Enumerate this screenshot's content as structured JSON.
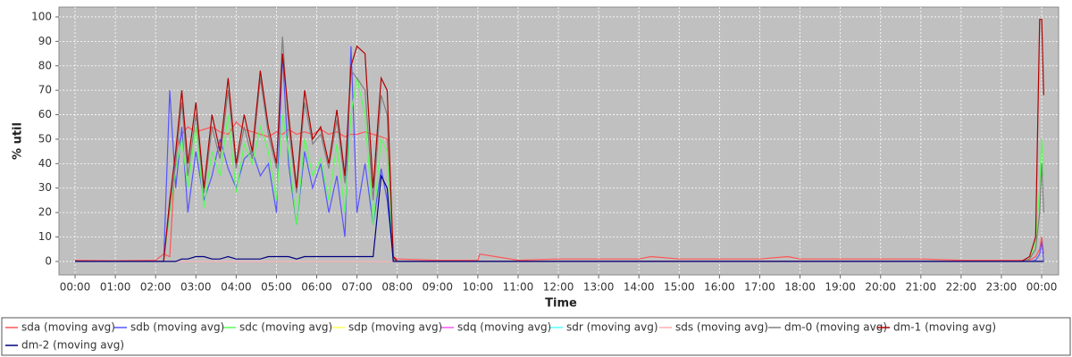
{
  "chart_data": {
    "type": "line",
    "xlabel": "Time",
    "ylabel": "% util",
    "x": [
      0,
      1,
      2,
      2.2,
      2.35,
      2.5,
      2.65,
      2.8,
      3.0,
      3.2,
      3.4,
      3.6,
      3.8,
      4.0,
      4.2,
      4.4,
      4.6,
      4.8,
      5.0,
      5.15,
      5.3,
      5.5,
      5.7,
      5.9,
      6.1,
      6.3,
      6.5,
      6.7,
      6.85,
      7.0,
      7.2,
      7.4,
      7.6,
      7.75,
      7.9,
      8.0,
      9,
      10,
      10.05,
      11,
      12,
      13,
      14,
      14.3,
      15,
      16,
      17,
      17.7,
      18,
      19,
      20,
      21,
      22,
      23,
      23.5,
      23.7,
      23.85,
      23.95,
      24.0,
      24.05
    ],
    "xlim": [
      -0.4,
      24.42
    ],
    "xticks": [
      {
        "value": 0,
        "label": "00:00"
      },
      {
        "value": 1,
        "label": "01:00"
      },
      {
        "value": 2,
        "label": "02:00"
      },
      {
        "value": 3,
        "label": "03:00"
      },
      {
        "value": 4,
        "label": "04:00"
      },
      {
        "value": 5,
        "label": "05:00"
      },
      {
        "value": 6,
        "label": "06:00"
      },
      {
        "value": 7,
        "label": "07:00"
      },
      {
        "value": 8,
        "label": "08:00"
      },
      {
        "value": 9,
        "label": "09:00"
      },
      {
        "value": 10,
        "label": "10:00"
      },
      {
        "value": 11,
        "label": "11:00"
      },
      {
        "value": 12,
        "label": "12:00"
      },
      {
        "value": 13,
        "label": "13:00"
      },
      {
        "value": 14,
        "label": "14:00"
      },
      {
        "value": 15,
        "label": "15:00"
      },
      {
        "value": 16,
        "label": "16:00"
      },
      {
        "value": 17,
        "label": "17:00"
      },
      {
        "value": 18,
        "label": "18:00"
      },
      {
        "value": 19,
        "label": "19:00"
      },
      {
        "value": 20,
        "label": "20:00"
      },
      {
        "value": 21,
        "label": "21:00"
      },
      {
        "value": 22,
        "label": "22:00"
      },
      {
        "value": 23,
        "label": "23:00"
      },
      {
        "value": 24,
        "label": "00:00"
      }
    ],
    "ylim": [
      -5.5,
      104
    ],
    "yticks": [
      0,
      10,
      20,
      30,
      40,
      50,
      60,
      70,
      80,
      90,
      100
    ],
    "grid": true,
    "legend": "bottom",
    "series": [
      {
        "name": "sda (moving avg)",
        "color": "#ff5555",
        "values": [
          0.5,
          0.3,
          0.5,
          3,
          2,
          45,
          52,
          55,
          53,
          54,
          55,
          53,
          52,
          57,
          54,
          53,
          52,
          51,
          53,
          52,
          54,
          52,
          53,
          52,
          54,
          52,
          53,
          51,
          52,
          52,
          53,
          52,
          51,
          50,
          2,
          1,
          0.5,
          0.5,
          3,
          0.5,
          1,
          1,
          1,
          2,
          1,
          1,
          1,
          2,
          1,
          1,
          1,
          1,
          0.5,
          0.5,
          0.5,
          0.5,
          2,
          5,
          10,
          3
        ]
      },
      {
        "name": "sdb (moving avg)",
        "color": "#5555ff",
        "values": [
          0,
          0,
          0,
          0,
          70,
          30,
          55,
          20,
          45,
          25,
          35,
          50,
          38,
          30,
          42,
          45,
          35,
          40,
          20,
          85,
          40,
          15,
          45,
          30,
          40,
          20,
          35,
          10,
          88,
          20,
          40,
          15,
          38,
          25,
          2,
          0,
          0,
          0,
          0,
          0,
          0,
          0,
          0,
          0,
          0,
          0,
          0,
          0,
          0,
          0,
          0,
          0,
          0,
          0,
          0,
          0,
          0.5,
          3,
          8,
          0
        ]
      },
      {
        "name": "sdc (moving avg)",
        "color": "#55ff55",
        "values": [
          0,
          0,
          0,
          0,
          20,
          38,
          50,
          30,
          55,
          22,
          45,
          35,
          60,
          28,
          48,
          40,
          55,
          45,
          25,
          60,
          45,
          15,
          50,
          35,
          42,
          25,
          48,
          20,
          60,
          75,
          60,
          15,
          50,
          45,
          1,
          0,
          0,
          0,
          0,
          0,
          0,
          0,
          0,
          0,
          0,
          0,
          0,
          0,
          0,
          0,
          0,
          0,
          0,
          0,
          0,
          1,
          8,
          30,
          50,
          35
        ]
      },
      {
        "name": "sdp (moving avg)",
        "color": "#ffff55",
        "values": [
          0,
          0,
          0,
          0,
          0,
          0,
          0,
          0,
          0,
          0,
          0,
          0,
          0,
          0,
          0,
          0,
          0,
          0,
          0,
          0,
          0,
          0,
          0,
          0,
          0,
          0,
          0,
          0,
          0,
          0,
          0,
          0,
          0,
          0,
          0,
          0,
          0,
          0,
          0,
          0,
          0,
          0,
          0,
          0,
          0,
          0,
          0,
          0,
          0,
          0,
          0,
          0,
          0,
          0,
          0,
          0,
          0,
          0,
          0,
          0
        ]
      },
      {
        "name": "sdq (moving avg)",
        "color": "#ff55ff",
        "values": [
          0,
          0,
          0,
          0,
          0,
          0,
          0,
          0,
          0,
          0,
          0,
          0,
          0,
          0,
          0,
          0,
          0,
          0,
          0,
          0,
          0,
          0,
          0,
          0,
          0,
          0,
          0,
          0,
          0,
          0,
          0,
          0,
          0,
          0,
          0,
          0,
          0,
          0,
          0,
          0,
          0,
          0,
          0,
          0,
          0,
          0,
          0,
          0,
          0,
          0,
          0,
          0,
          0,
          0,
          0,
          0,
          0,
          0,
          0,
          0
        ]
      },
      {
        "name": "sdr (moving avg)",
        "color": "#55ffff",
        "values": [
          0,
          0,
          0,
          0,
          0,
          0,
          0,
          0,
          0,
          0,
          0,
          0,
          0,
          0,
          0,
          0,
          0,
          0,
          0,
          0,
          0,
          0,
          0,
          0,
          0,
          0,
          0,
          0,
          0,
          0,
          0,
          0,
          0,
          0,
          0,
          0,
          0,
          0,
          0,
          0,
          0,
          0,
          0,
          0,
          0,
          0,
          0,
          0,
          0,
          0,
          0,
          0,
          0,
          0,
          0,
          0,
          0,
          0,
          0,
          0
        ]
      },
      {
        "name": "sds (moving avg)",
        "color": "#ffafaf",
        "values": [
          0,
          0,
          0,
          0,
          0,
          0,
          0,
          0,
          0,
          0,
          0,
          0,
          0,
          0,
          0,
          0,
          0,
          0,
          0,
          0,
          0,
          0,
          0,
          0,
          0,
          0,
          0,
          0,
          0,
          0,
          0,
          0,
          0,
          0,
          0,
          0,
          0,
          0,
          0,
          0,
          0,
          0,
          0,
          0,
          0,
          0,
          0,
          0,
          0,
          0,
          0,
          0,
          0,
          0,
          0,
          0,
          0,
          0,
          0,
          0
        ]
      },
      {
        "name": "dm-0 (moving avg)",
        "color": "#808080",
        "values": [
          0,
          0,
          0,
          0,
          22,
          40,
          65,
          35,
          60,
          28,
          55,
          42,
          70,
          38,
          55,
          42,
          75,
          52,
          38,
          92,
          55,
          28,
          65,
          48,
          52,
          38,
          58,
          32,
          78,
          75,
          70,
          25,
          68,
          60,
          1,
          0,
          0,
          0,
          0,
          0,
          0,
          0,
          0,
          0,
          0,
          0,
          0,
          0,
          0,
          0,
          0,
          0,
          0,
          0,
          0,
          1,
          5,
          20,
          40,
          20
        ]
      },
      {
        "name": "dm-1 (moving avg)",
        "color": "#b00000",
        "values": [
          0,
          0,
          0,
          0,
          25,
          45,
          70,
          40,
          65,
          30,
          60,
          45,
          75,
          40,
          60,
          45,
          78,
          55,
          40,
          85,
          60,
          30,
          70,
          50,
          55,
          40,
          62,
          35,
          80,
          88,
          85,
          30,
          75,
          70,
          2,
          0,
          0,
          0,
          0,
          0,
          0,
          0,
          0,
          0,
          0,
          0,
          0,
          0,
          0,
          0,
          0,
          0,
          0,
          0,
          0,
          2,
          10,
          99,
          99,
          68
        ]
      },
      {
        "name": "dm-2 (moving avg)",
        "color": "#000080",
        "values": [
          0,
          0,
          0,
          0,
          0,
          0,
          1,
          1,
          2,
          2,
          1,
          1,
          2,
          1,
          1,
          1,
          1,
          2,
          2,
          2,
          2,
          1,
          2,
          2,
          2,
          2,
          2,
          2,
          2,
          2,
          2,
          2,
          35,
          30,
          0,
          0,
          0,
          0,
          0,
          0,
          0,
          0,
          0,
          0,
          0,
          0,
          0,
          0,
          0,
          0,
          0,
          0,
          0,
          0,
          0,
          0,
          0,
          0,
          0,
          0
        ]
      }
    ]
  }
}
